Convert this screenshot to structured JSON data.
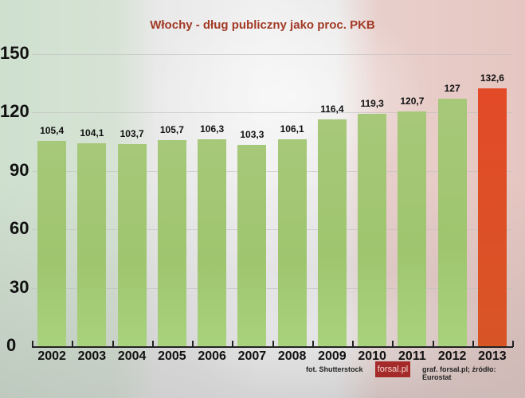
{
  "chart_data": {
    "type": "bar",
    "title": "Włochy - dług publiczny jako proc. PKB",
    "xlabel": "",
    "ylabel": "",
    "ylim": [
      0,
      150
    ],
    "yticks": [
      0,
      30,
      60,
      90,
      120,
      150
    ],
    "grid": true,
    "categories": [
      "2002",
      "2003",
      "2004",
      "2005",
      "2006",
      "2007",
      "2008",
      "2009",
      "2010",
      "2011",
      "2012",
      "2013"
    ],
    "values": [
      105.4,
      104.1,
      103.7,
      105.7,
      106.3,
      103.3,
      106.1,
      116.4,
      119.3,
      120.7,
      127,
      132.6
    ],
    "value_labels": [
      "105,4",
      "104,1",
      "103,7",
      "105,7",
      "106,3",
      "103,3",
      "106,1",
      "116,4",
      "119,3",
      "120,7",
      "127",
      "132,6"
    ],
    "bar_colors": [
      "#a6c879",
      "#a6c879",
      "#a6c879",
      "#a6c879",
      "#a6c879",
      "#a6c879",
      "#a6c879",
      "#a6c879",
      "#a6c879",
      "#a6c879",
      "#a6c879",
      "#e04a26"
    ],
    "legend": null
  },
  "header": {
    "title": "Włochy - dług publiczny jako proc. PKB"
  },
  "axis": {
    "y_labels": [
      "150",
      "120",
      "90",
      "60",
      "30",
      "0"
    ]
  },
  "footer": {
    "photo_credit": "fot. Shutterstock",
    "logo_text": "forsal.pl",
    "source": "graf. forsal.pl;  źródło: Eurostat"
  },
  "colors": {
    "title": "#a23a26",
    "bar_green": "#a6c879",
    "bar_highlight": "#e04a26",
    "logo_bg": "#a52a2a"
  }
}
